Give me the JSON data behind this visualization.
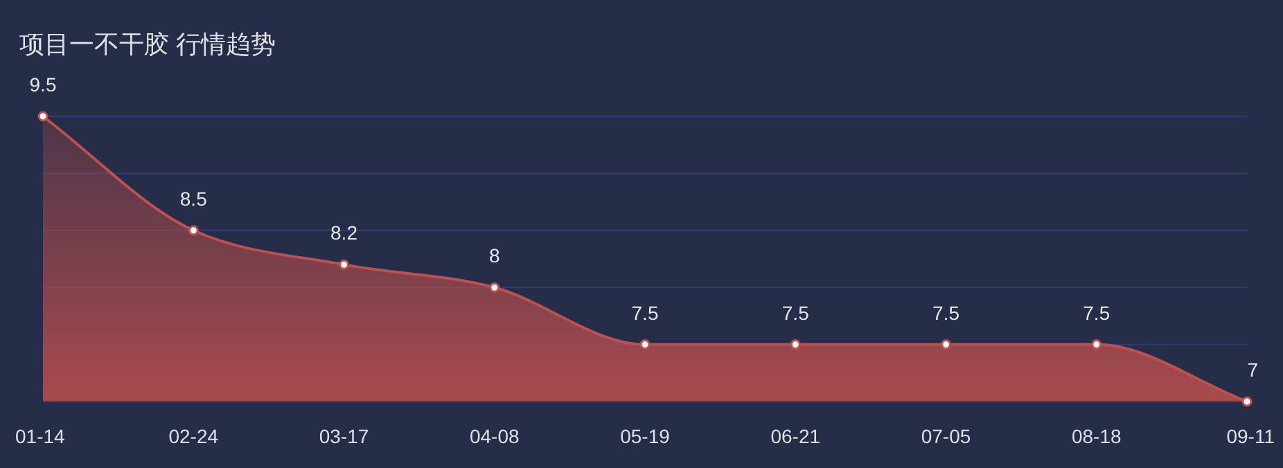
{
  "chart_data": {
    "type": "area",
    "title": "项目一不干胶 行情趋势",
    "categories": [
      "01-14",
      "02-24",
      "03-17",
      "04-08",
      "05-19",
      "06-21",
      "07-05",
      "08-18",
      "09-11"
    ],
    "values": [
      9.5,
      8.5,
      8.2,
      8,
      7.5,
      7.5,
      7.5,
      7.5,
      7
    ],
    "color": "#c0504d",
    "ylim": [
      7,
      9.5
    ],
    "yticks": [
      {
        "value": 7,
        "label": null
      },
      {
        "value": 7.5,
        "label": null
      },
      {
        "value": 8,
        "label": null
      },
      {
        "value": 8.5,
        "label": null
      },
      {
        "value": 9,
        "label": null
      },
      {
        "value": 9.5,
        "label": null
      }
    ],
    "grid": "y",
    "data_labels": true,
    "marker": "circle",
    "line_style": "solid"
  }
}
